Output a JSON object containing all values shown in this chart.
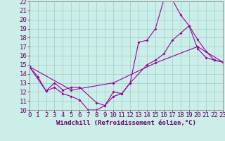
{
  "xlabel": "Windchill (Refroidissement éolien,°C)",
  "bg_color": "#cceee8",
  "grid_color": "#99cccc",
  "line_color": "#990099",
  "xmin": 0,
  "xmax": 23,
  "ymin": 10,
  "ymax": 22,
  "line1_x": [
    0,
    1,
    2,
    3,
    4,
    5,
    6,
    7,
    8,
    9,
    10,
    11,
    12,
    13,
    14,
    15,
    16,
    17,
    18,
    19,
    20,
    21,
    22,
    23
  ],
  "line1_y": [
    14.8,
    13.7,
    12.1,
    12.5,
    11.8,
    11.5,
    11.1,
    10.0,
    10.0,
    10.5,
    11.5,
    11.8,
    13.0,
    17.5,
    17.7,
    19.0,
    22.2,
    22.2,
    20.5,
    19.3,
    16.8,
    15.8,
    15.5,
    15.3
  ],
  "line2_x": [
    0,
    2,
    3,
    4,
    5,
    6,
    8,
    9,
    10,
    11,
    12,
    14,
    15,
    16,
    17,
    18,
    19,
    20,
    21,
    22,
    23
  ],
  "line2_y": [
    14.8,
    12.1,
    13.0,
    12.2,
    12.5,
    12.5,
    10.8,
    10.5,
    12.0,
    11.8,
    13.0,
    15.0,
    15.5,
    16.2,
    17.7,
    18.5,
    19.3,
    17.8,
    16.5,
    15.5,
    15.3
  ],
  "line3_x": [
    0,
    5,
    10,
    15,
    20,
    23
  ],
  "line3_y": [
    14.8,
    12.2,
    13.0,
    15.2,
    17.0,
    15.3
  ],
  "tick_fontsize": 6.5,
  "xlabel_fontsize": 6.5
}
